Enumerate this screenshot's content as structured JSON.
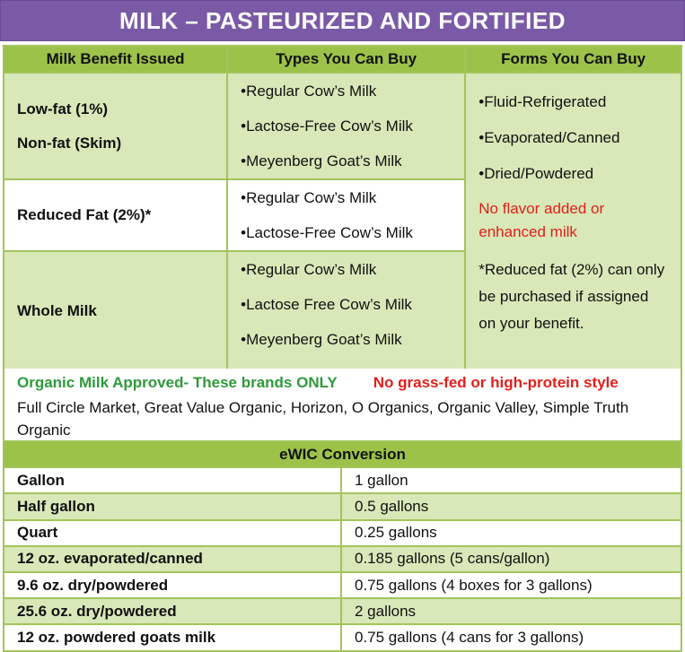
{
  "title": "MILK – PASTEURIZED AND FORTIFIED",
  "headers": [
    "Milk Benefit Issued",
    "Types You Can Buy",
    "Forms You Can Buy"
  ],
  "rows": [
    {
      "benefit": [
        "Low-fat (1%)",
        "Non-fat (Skim)"
      ],
      "types": [
        "•Regular Cow’s Milk",
        "•Lactose-Free Cow’s Milk",
        "•Meyenberg Goat’s Milk"
      ]
    },
    {
      "benefit": [
        "Reduced Fat (2%)*"
      ],
      "types": [
        "•Regular Cow’s Milk",
        "•Lactose-Free Cow’s Milk"
      ]
    },
    {
      "benefit": [
        "Whole Milk"
      ],
      "types": [
        "•Regular Cow’s Milk",
        "•Lactose Free Cow’s Milk",
        "•Meyenberg Goat’s Milk"
      ]
    }
  ],
  "forms": {
    "items": [
      "•Fluid-Refrigerated",
      "•Evaporated/Canned",
      "•Dried/Powdered"
    ],
    "warning": "No flavor added or enhanced milk",
    "note": "*Reduced fat (2%) can only be purchased if assigned on your benefit."
  },
  "organic": {
    "approved": "Organic Milk Approved- These brands ONLY",
    "excluded": "No grass-fed or high-protein style",
    "brands": "Full Circle Market, Great Value Organic, Horizon, O Organics, Organic Valley, Simple Truth Organic"
  },
  "conversion": {
    "header": "eWIC Conversion",
    "rows": [
      [
        "Gallon",
        "1 gallon"
      ],
      [
        "Half gallon",
        "0.5 gallons"
      ],
      [
        "Quart",
        "0.25 gallons"
      ],
      [
        "12 oz. evaporated/canned",
        "0.185 gallons (5 cans/gallon)"
      ],
      [
        "9.6 oz. dry/powdered",
        "0.75 gallons (4 boxes for 3 gallons)"
      ],
      [
        "25.6 oz. dry/powdered",
        "2 gallons"
      ],
      [
        "12 oz. powdered goats milk",
        "0.75 gallons (4 cans for 3 gallons)"
      ]
    ]
  },
  "colors": {
    "title_bg": "#7a5aa6",
    "header_green": "#9cc24a",
    "light_green": "#d8e8b8",
    "red": "#e0201c",
    "organic_green": "#2e9a3a"
  }
}
